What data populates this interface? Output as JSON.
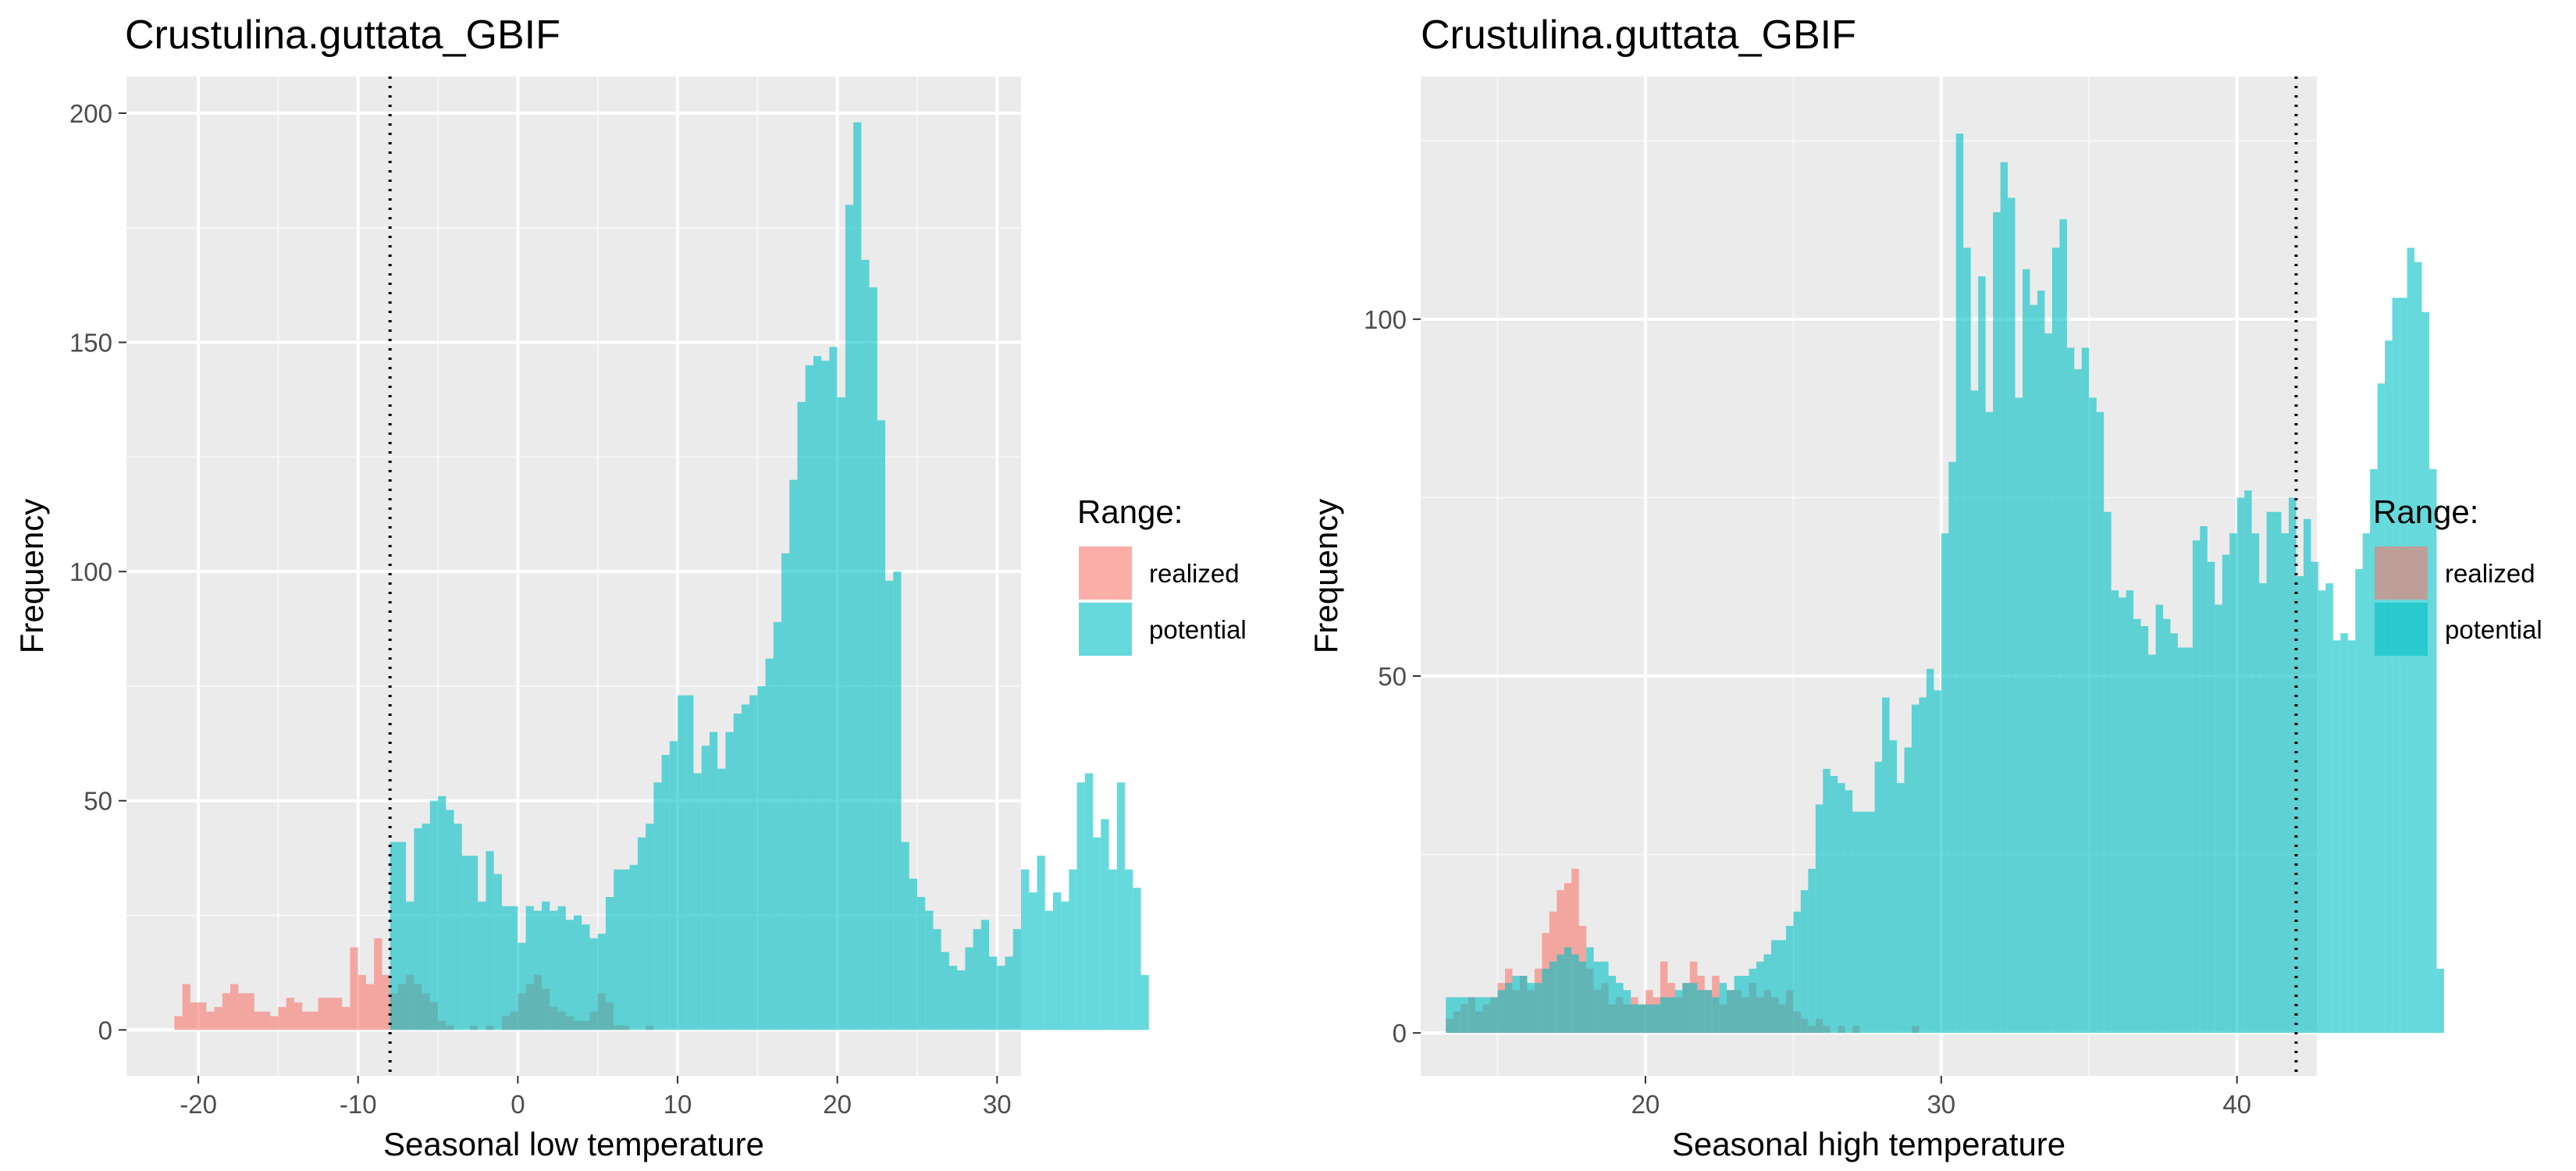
{
  "chart_data": [
    {
      "type": "histogram",
      "title": "Crustulina.guttata_GBIF",
      "xlabel": "Seasonal low temperature",
      "ylabel": "Frequency",
      "xlim": [
        -24.5,
        31.5
      ],
      "ylim": [
        -10,
        208
      ],
      "x_ticks": [
        -20,
        -10,
        0,
        10,
        20,
        30
      ],
      "y_ticks": [
        0,
        50,
        100,
        150,
        200
      ],
      "grid": true,
      "threshold_line": -8,
      "bin_width": 0.5,
      "legend": {
        "title": "Range:",
        "position": "right",
        "entries": [
          "realized",
          "potential"
        ]
      },
      "series": [
        {
          "name": "realized",
          "color": "#F8766D",
          "x_start": -21.5,
          "values": [
            3,
            10,
            6,
            6,
            4,
            5,
            8,
            10,
            8,
            8,
            4,
            4,
            3,
            5,
            7,
            6,
            4,
            4,
            7,
            7,
            7,
            5,
            18,
            12,
            10,
            20,
            12,
            8,
            10,
            12,
            10,
            8,
            6,
            2,
            1,
            0,
            0,
            1,
            0,
            1,
            0,
            3,
            4,
            8,
            10,
            12,
            9,
            5,
            4,
            3,
            2,
            2,
            4,
            8,
            6,
            1,
            1,
            0,
            0,
            1,
            0,
            0,
            0,
            0,
            0,
            0,
            0,
            0,
            0,
            0,
            0,
            0,
            0,
            0,
            0,
            0,
            0,
            0,
            0,
            0,
            0,
            0,
            0,
            0,
            0,
            0,
            0,
            0,
            0,
            0,
            0,
            0,
            0,
            0,
            0,
            0,
            0,
            0,
            0,
            0,
            0
          ]
        },
        {
          "name": "potential",
          "color": "#00BFC4",
          "x_start": -8,
          "values": [
            41,
            41,
            28,
            44,
            45,
            50,
            51,
            48,
            45,
            38,
            38,
            28,
            39,
            34,
            27,
            27,
            19,
            27,
            26,
            28,
            26,
            27,
            24,
            25,
            23,
            20,
            21,
            29,
            35,
            35,
            36,
            42,
            45,
            54,
            60,
            63,
            73,
            73,
            56,
            62,
            65,
            57,
            65,
            69,
            71,
            73,
            75,
            81,
            89,
            104,
            120,
            137,
            145,
            147,
            146,
            149,
            138,
            180,
            198,
            168,
            162,
            133,
            98,
            100,
            41,
            33,
            29,
            26,
            22,
            17,
            14,
            13,
            18,
            22,
            24,
            16,
            14,
            16,
            22,
            35,
            30,
            38,
            26,
            30,
            28,
            35,
            54,
            56,
            42,
            46,
            35,
            54,
            35,
            31,
            12,
            0,
            0,
            0,
            0,
            0,
            0,
            0,
            0,
            0,
            0,
            0,
            0,
            0,
            0,
            0,
            0
          ]
        }
      ]
    },
    {
      "type": "histogram",
      "title": "Crustulina.guttata_GBIF",
      "xlabel": "Seasonal high temperature",
      "ylabel": "Frequency",
      "xlim": [
        12.4,
        42.7
      ],
      "ylim": [
        -6,
        134
      ],
      "x_ticks": [
        20,
        30,
        40
      ],
      "y_ticks": [
        0,
        50,
        100
      ],
      "grid": true,
      "threshold_line": 42,
      "bin_width": 0.25,
      "legend": {
        "title": "Range:",
        "position": "right",
        "entries": [
          "realized",
          "potential"
        ]
      },
      "series": [
        {
          "name": "realized",
          "color": "#F8766D",
          "x_start": 13.25,
          "values": [
            2,
            3,
            4,
            5,
            3,
            4,
            5,
            7,
            9,
            6,
            8,
            6,
            9,
            14,
            17,
            20,
            21,
            23,
            15,
            9,
            6,
            7,
            4,
            5,
            4,
            5,
            4,
            6,
            5,
            10,
            7,
            5,
            7,
            10,
            8,
            6,
            8,
            4,
            6,
            6,
            5,
            7,
            5,
            6,
            5,
            4,
            6,
            3,
            2,
            1,
            2,
            1,
            0,
            1,
            0,
            1,
            0,
            0,
            0,
            0,
            0,
            0,
            0,
            1,
            0,
            0,
            0,
            0,
            0,
            0,
            0,
            0,
            0,
            0,
            0,
            0,
            0,
            0,
            0,
            0,
            0,
            0,
            0,
            0,
            0,
            0,
            0,
            0,
            0,
            0,
            0,
            0,
            0,
            0,
            0,
            0,
            0,
            0,
            0,
            0,
            0,
            0,
            0,
            0,
            0,
            0,
            0,
            0,
            0,
            0,
            0,
            0,
            0,
            0,
            0,
            0,
            0,
            0
          ]
        },
        {
          "name": "potential",
          "color": "#00BFC4",
          "x_start": 13.25,
          "values": [
            5,
            5,
            5,
            5,
            5,
            5,
            5,
            6,
            7,
            8,
            8,
            7,
            7,
            9,
            10,
            11,
            12,
            11,
            10,
            12,
            10,
            10,
            8,
            7,
            6,
            4,
            4,
            4,
            4,
            5,
            5,
            6,
            7,
            7,
            6,
            6,
            5,
            7,
            6,
            8,
            8,
            9,
            10,
            11,
            13,
            13,
            15,
            17,
            20,
            23,
            32,
            37,
            36,
            35,
            34,
            31,
            31,
            31,
            38,
            47,
            41,
            35,
            40,
            46,
            47,
            51,
            48,
            70,
            80,
            126,
            110,
            90,
            106,
            87,
            115,
            122,
            117,
            89,
            107,
            102,
            104,
            98,
            110,
            114,
            96,
            93,
            96,
            89,
            87,
            73,
            62,
            61,
            62,
            58,
            57,
            53,
            60,
            58,
            56,
            54,
            54,
            69,
            71,
            66,
            60,
            67,
            70,
            75,
            76,
            70,
            63,
            73,
            73,
            70,
            75,
            64,
            72,
            66,
            62,
            63,
            55,
            56,
            55,
            65,
            70,
            79,
            91,
            97,
            103,
            103,
            110,
            108,
            101,
            79,
            9
          ]
        }
      ]
    }
  ]
}
